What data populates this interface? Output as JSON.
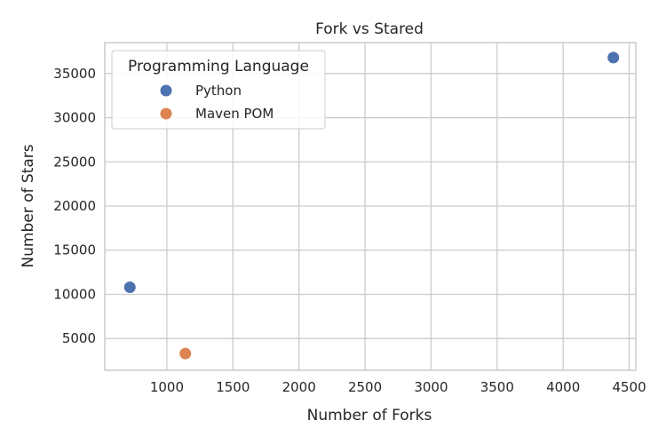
{
  "chart_data": {
    "type": "scatter",
    "title": "Fork vs Stared",
    "xlabel": "Number of Forks",
    "ylabel": "Number of Stars",
    "xlim": [
      530,
      4550
    ],
    "ylim": [
      1400,
      38500
    ],
    "xticks": [
      1000,
      1500,
      2000,
      2500,
      3000,
      3500,
      4000,
      4500
    ],
    "yticks": [
      5000,
      10000,
      15000,
      20000,
      25000,
      30000,
      35000
    ],
    "grid": true,
    "legend": {
      "title": "Programming Language",
      "placement": "top-left"
    },
    "series": [
      {
        "name": "Python",
        "color": "#4c72b0",
        "points": [
          {
            "x": 720,
            "y": 10800
          },
          {
            "x": 4380,
            "y": 36800
          }
        ]
      },
      {
        "name": "Maven POM",
        "color": "#dd8452",
        "points": [
          {
            "x": 1140,
            "y": 3300
          }
        ]
      }
    ]
  }
}
